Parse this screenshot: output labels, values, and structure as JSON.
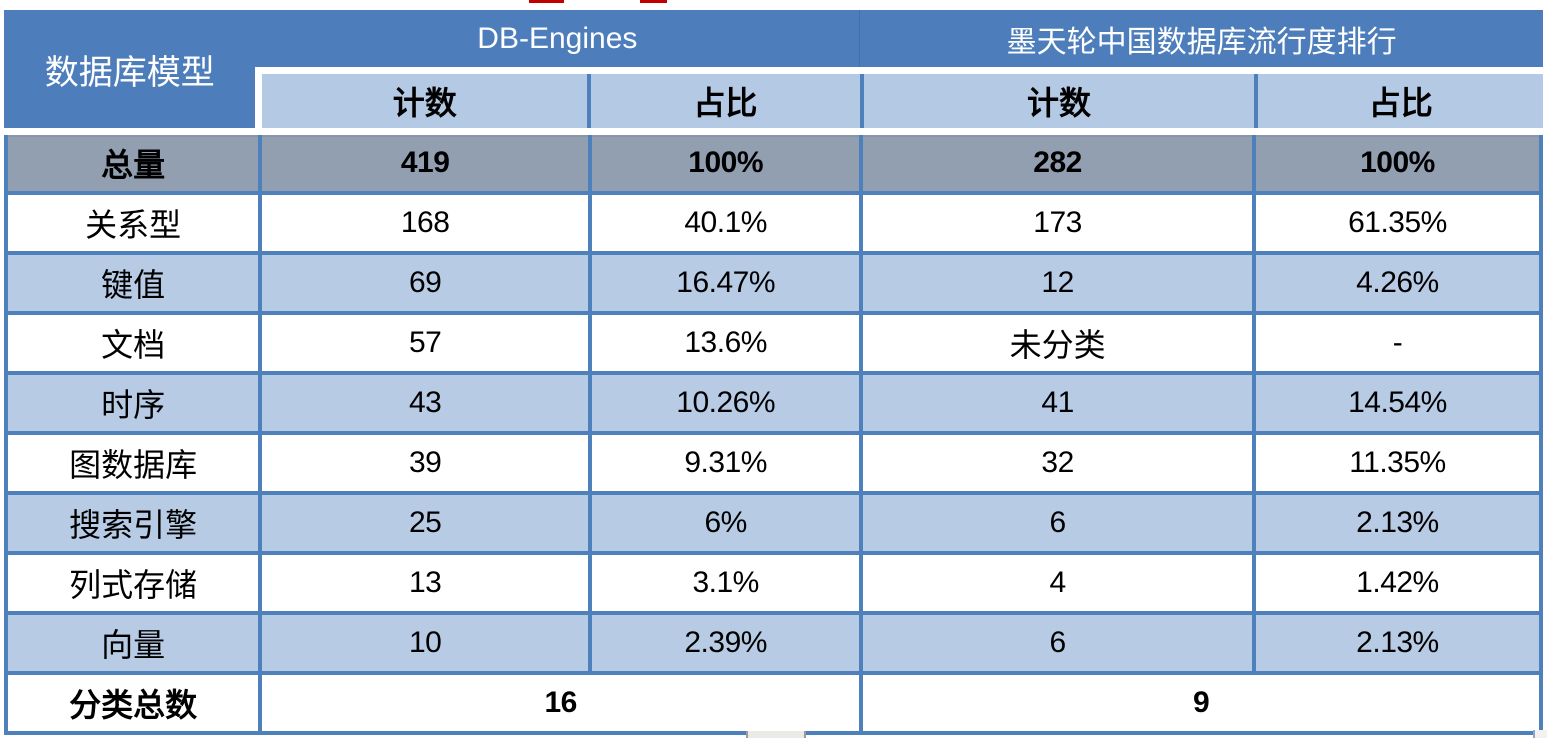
{
  "header": {
    "model_col": "数据库模型",
    "source_left": "DB-Engines",
    "source_right": "墨天轮中国数据库流行度排行",
    "sub_labels": [
      "计数",
      "占比",
      "计数",
      "占比"
    ]
  },
  "table": {
    "rows": [
      {
        "category": "总量",
        "values": [
          "419",
          "100%",
          "282",
          "100%"
        ]
      },
      {
        "category": "关系型",
        "values": [
          "168",
          "40.1%",
          "173",
          "61.35%"
        ]
      },
      {
        "category": "键值",
        "values": [
          "69",
          "16.47%",
          "12",
          "4.26%"
        ]
      },
      {
        "category": "文档",
        "values": [
          "57",
          "13.6%",
          "未分类",
          "-"
        ]
      },
      {
        "category": "时序",
        "values": [
          "43",
          "10.26%",
          "41",
          "14.54%"
        ]
      },
      {
        "category": "图数据库",
        "values": [
          "39",
          "9.31%",
          "32",
          "11.35%"
        ]
      },
      {
        "category": "搜索引擎",
        "values": [
          "25",
          "6%",
          "6",
          "2.13%"
        ]
      },
      {
        "category": "列式存储",
        "values": [
          "13",
          "3.1%",
          "4",
          "1.42%"
        ]
      },
      {
        "category": "向量",
        "values": [
          "10",
          "2.39%",
          "6",
          "2.13%"
        ]
      }
    ],
    "footer": {
      "category": "分类总数",
      "db_engines_total": "16",
      "modb_total": "9"
    }
  },
  "colors": {
    "header_blue": "#4D7EBB",
    "light_blue": "#B7CBE5",
    "subheader_blue": "#B4C9E4",
    "total_row_gray": "#929FB1",
    "border_blue": "#4E80BC",
    "text": "#000000",
    "header_text": "#FFFFFF"
  },
  "chart_data": {
    "type": "table",
    "columns": [
      "数据库模型",
      "DB-Engines 计数",
      "DB-Engines 占比",
      "墨天轮中国数据库流行度排行 计数",
      "墨天轮中国数据库流行度排行 占比"
    ],
    "rows": [
      [
        "总量",
        "419",
        "100%",
        "282",
        "100%"
      ],
      [
        "关系型",
        "168",
        "40.1%",
        "173",
        "61.35%"
      ],
      [
        "键值",
        "69",
        "16.47%",
        "12",
        "4.26%"
      ],
      [
        "文档",
        "57",
        "13.6%",
        "未分类",
        "-"
      ],
      [
        "时序",
        "43",
        "10.26%",
        "41",
        "14.54%"
      ],
      [
        "图数据库",
        "39",
        "9.31%",
        "32",
        "11.35%"
      ],
      [
        "搜索引擎",
        "25",
        "6%",
        "6",
        "2.13%"
      ],
      [
        "列式存储",
        "13",
        "3.1%",
        "4",
        "1.42%"
      ],
      [
        "向量",
        "10",
        "2.39%",
        "6",
        "2.13%"
      ],
      [
        "分类总数",
        "16",
        "",
        "9",
        ""
      ]
    ]
  }
}
